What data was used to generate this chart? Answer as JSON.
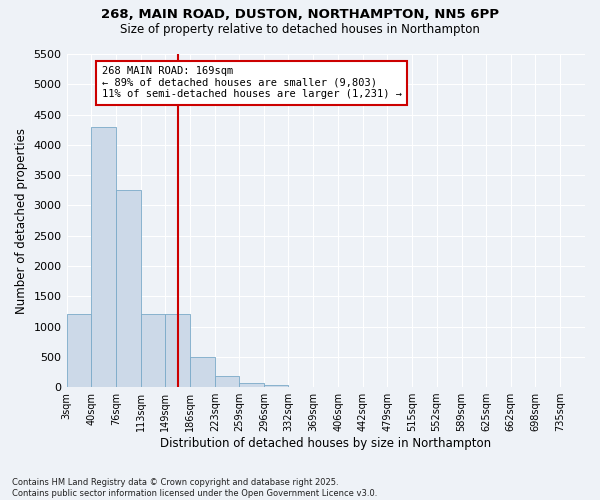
{
  "title_line1": "268, MAIN ROAD, DUSTON, NORTHAMPTON, NN5 6PP",
  "title_line2": "Size of property relative to detached houses in Northampton",
  "xlabel": "Distribution of detached houses by size in Northampton",
  "ylabel": "Number of detached properties",
  "bar_color": "#ccd9e8",
  "bar_edge_color": "#7aaac8",
  "vline_color": "#cc0000",
  "vline_x": 169,
  "annotation_text": "268 MAIN ROAD: 169sqm\n← 89% of detached houses are smaller (9,803)\n11% of semi-detached houses are larger (1,231) →",
  "annotation_box_color": "#ffffff",
  "annotation_box_edge": "#cc0000",
  "categories": [
    "3sqm",
    "40sqm",
    "76sqm",
    "113sqm",
    "149sqm",
    "186sqm",
    "223sqm",
    "259sqm",
    "296sqm",
    "332sqm",
    "369sqm",
    "406sqm",
    "442sqm",
    "479sqm",
    "515sqm",
    "552sqm",
    "589sqm",
    "625sqm",
    "662sqm",
    "698sqm",
    "735sqm"
  ],
  "bin_edges": [
    3,
    40,
    76,
    113,
    149,
    186,
    223,
    259,
    296,
    332,
    369,
    406,
    442,
    479,
    515,
    552,
    589,
    625,
    662,
    698,
    735,
    772
  ],
  "values": [
    1200,
    4300,
    3250,
    1200,
    1200,
    500,
    175,
    65,
    35,
    0,
    0,
    0,
    0,
    0,
    0,
    0,
    0,
    0,
    0,
    0,
    0
  ],
  "ylim": [
    0,
    5500
  ],
  "yticks": [
    0,
    500,
    1000,
    1500,
    2000,
    2500,
    3000,
    3500,
    4000,
    4500,
    5000,
    5500
  ],
  "footnote": "Contains HM Land Registry data © Crown copyright and database right 2025.\nContains public sector information licensed under the Open Government Licence v3.0.",
  "background_color": "#eef2f7",
  "grid_color": "#ffffff",
  "fig_width": 6.0,
  "fig_height": 5.0,
  "dpi": 100
}
